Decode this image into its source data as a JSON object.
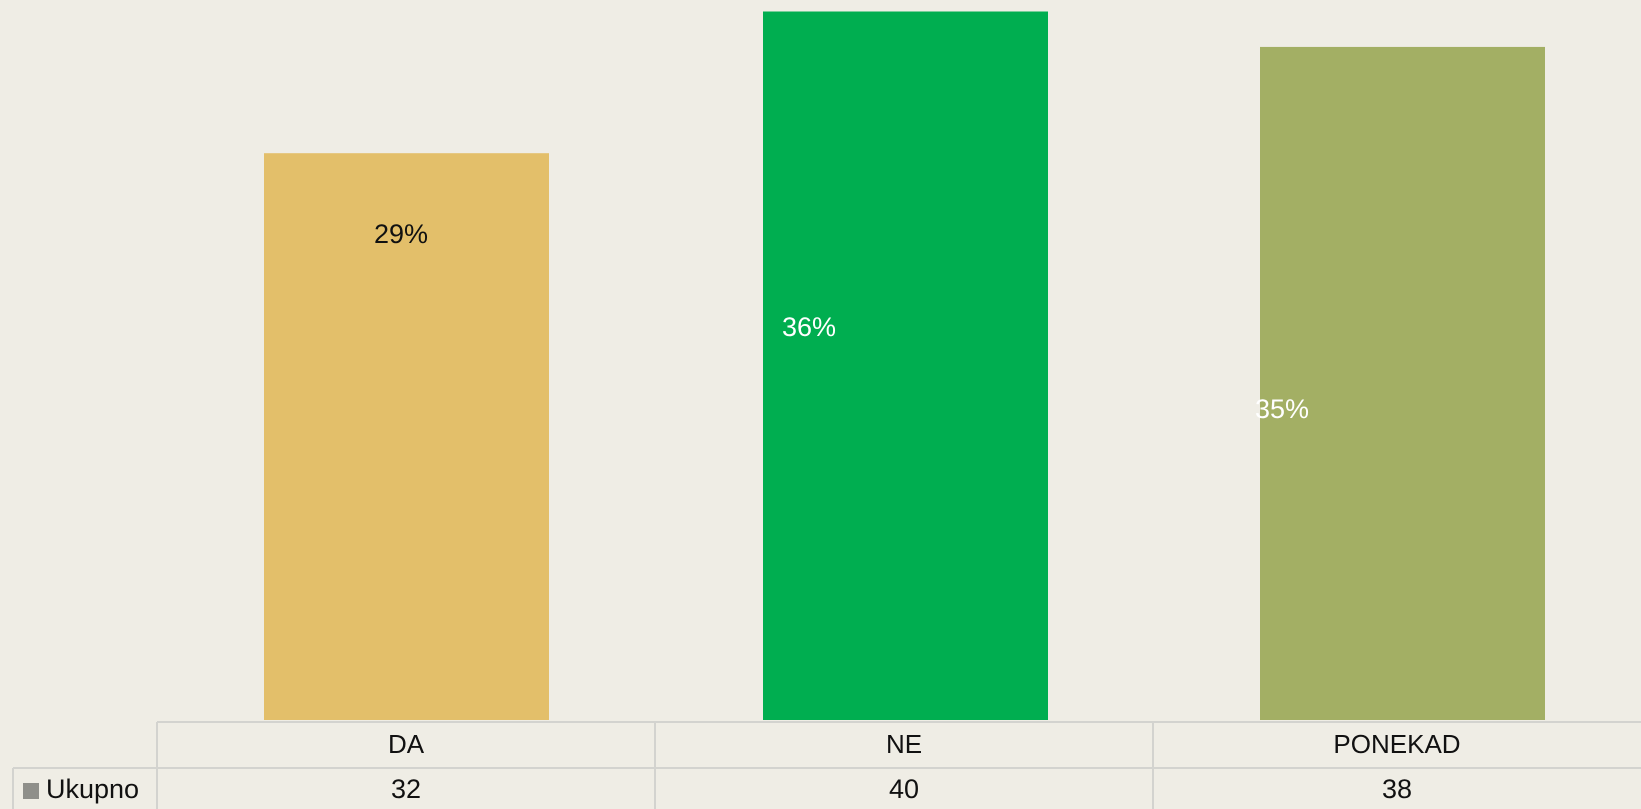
{
  "chart_data": {
    "type": "bar",
    "categories": [
      "DA",
      "NE",
      "PONEKAD"
    ],
    "series": [
      {
        "name": "Ukupno",
        "color": "#8f8f8a",
        "values": [
          32,
          40,
          38
        ]
      }
    ],
    "bar_colors": [
      "#e3bf6a",
      "#00ae50",
      "#a3af64"
    ],
    "percent_labels": [
      "29%",
      "36%",
      "35%"
    ],
    "ylim": [
      0,
      40
    ]
  }
}
